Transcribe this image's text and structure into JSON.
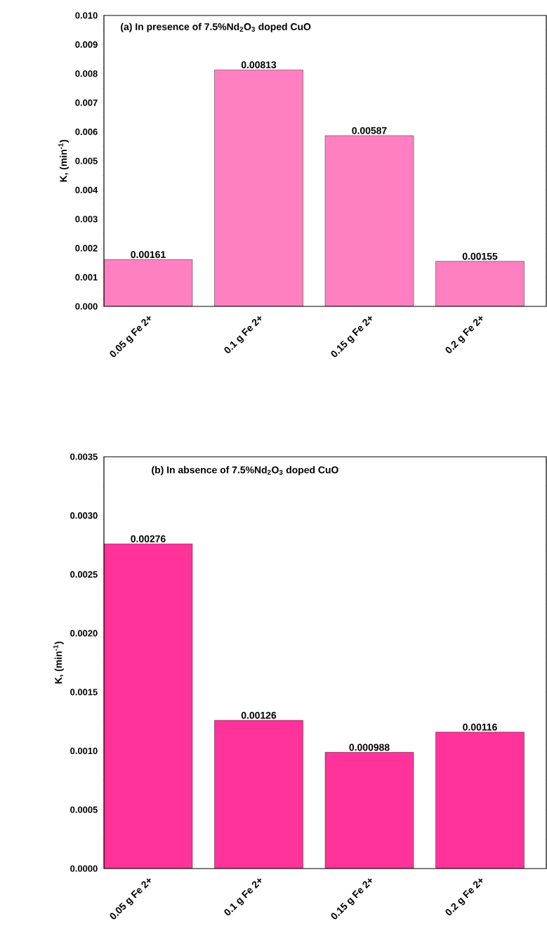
{
  "chart_data": [
    {
      "type": "bar",
      "title": "(a) In presence of 7.5%Nd$_{2}$O$_{3}$ doped CuO",
      "ylabel": "K, (min$^{-1}$)",
      "categories": [
        "0.05 g  Fe 2+",
        "0.1 g  Fe 2+",
        "0.15 g  Fe 2+",
        "0.2 g  Fe 2+"
      ],
      "values": [
        0.00161,
        0.00813,
        0.00587,
        0.00155
      ],
      "color": "#ff80c0",
      "data_labels": true,
      "ylim": [
        0,
        0.01
      ],
      "yticks": [
        {
          "value": 0,
          "label": "0.000"
        },
        {
          "value": 0.001,
          "label": "0.001"
        },
        {
          "value": 0.002,
          "label": "0.002"
        },
        {
          "value": 0.003,
          "label": "0.003"
        },
        {
          "value": 0.004,
          "label": "0.004"
        },
        {
          "value": 0.005,
          "label": "0.005"
        },
        {
          "value": 0.006,
          "label": "0.006"
        },
        {
          "value": 0.007,
          "label": "0.007"
        },
        {
          "value": 0.008,
          "label": "0.008"
        },
        {
          "value": 0.009,
          "label": "0.009"
        },
        {
          "value": 0.01,
          "label": "0.010"
        }
      ]
    },
    {
      "type": "bar",
      "title": "(b) In absence of 7.5%Nd$_{2}$O$_{3}$ doped CuO",
      "ylabel": "K, (min$^{-1}$)",
      "categories": [
        "0.05 g Fe 2+",
        "0.1 g Fe 2+",
        "0.15 g Fe 2+",
        "0.2 g Fe 2+"
      ],
      "values": [
        0.00276,
        0.00126,
        0.000988,
        0.00116
      ],
      "color": "#ff3399",
      "data_labels": true,
      "ylim": [
        0,
        0.0035
      ],
      "yticks": [
        {
          "value": 0,
          "label": "0.0000"
        },
        {
          "value": 0.0005,
          "label": "0.0005"
        },
        {
          "value": 0.001,
          "label": "0.0010"
        },
        {
          "value": 0.0015,
          "label": "0.0015"
        },
        {
          "value": 0.002,
          "label": "0.0020"
        },
        {
          "value": 0.0025,
          "label": "0.0025"
        },
        {
          "value": 0.003,
          "label": "0.0030"
        },
        {
          "value": 0.0035,
          "label": "0.0035"
        }
      ]
    }
  ]
}
